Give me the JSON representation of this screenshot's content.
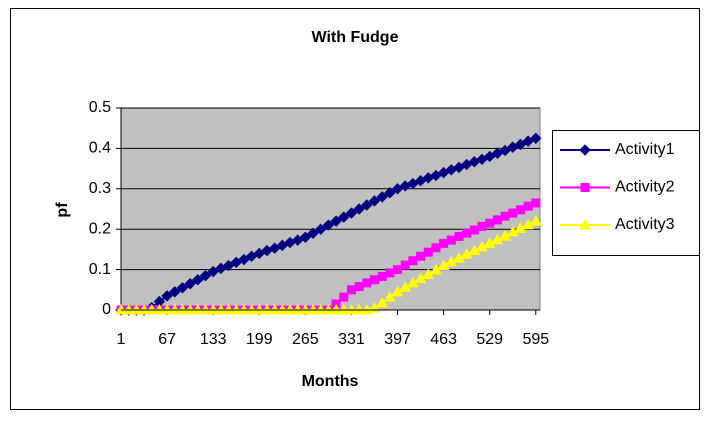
{
  "chart_data": {
    "type": "line",
    "title": "With Fudge",
    "xlabel": "Months",
    "ylabel": "pf",
    "x": [
      1,
      12,
      23,
      34,
      45,
      56,
      67,
      78,
      89,
      100,
      111,
      122,
      133,
      144,
      155,
      166,
      177,
      188,
      199,
      210,
      221,
      232,
      243,
      254,
      265,
      276,
      287,
      298,
      309,
      320,
      331,
      342,
      353,
      364,
      375,
      386,
      397,
      408,
      419,
      430,
      441,
      452,
      463,
      474,
      485,
      496,
      507,
      518,
      529,
      540,
      551,
      562,
      573,
      584,
      595
    ],
    "xlim": [
      1,
      601
    ],
    "xticks": [
      1,
      67,
      133,
      199,
      265,
      331,
      397,
      463,
      529,
      595
    ],
    "ylim": [
      0,
      0.5
    ],
    "yticks": [
      0,
      0.1,
      0.2,
      0.3,
      0.4,
      0.5
    ],
    "grid": true,
    "legend": "right",
    "series": [
      {
        "name": "Activity1",
        "color": "#000080",
        "marker": "diamond",
        "values": [
          0,
          0,
          0,
          0,
          0.006,
          0.021,
          0.035,
          0.045,
          0.055,
          0.065,
          0.075,
          0.085,
          0.095,
          0.103,
          0.11,
          0.118,
          0.125,
          0.133,
          0.14,
          0.147,
          0.153,
          0.16,
          0.167,
          0.173,
          0.18,
          0.19,
          0.2,
          0.21,
          0.22,
          0.23,
          0.24,
          0.25,
          0.26,
          0.27,
          0.28,
          0.29,
          0.3,
          0.307,
          0.313,
          0.32,
          0.327,
          0.333,
          0.34,
          0.347,
          0.353,
          0.36,
          0.367,
          0.373,
          0.38,
          0.388,
          0.395,
          0.403,
          0.41,
          0.418,
          0.425
        ]
      },
      {
        "name": "Activity2",
        "color": "#FF00FF",
        "marker": "square",
        "values": [
          0,
          0,
          0,
          0,
          0,
          0,
          0,
          0,
          0,
          0,
          0,
          0,
          0,
          0,
          0,
          0,
          0,
          0,
          0,
          0,
          0,
          0,
          0,
          0,
          0,
          0,
          0,
          0,
          0.015,
          0.032,
          0.05,
          0.058,
          0.067,
          0.075,
          0.083,
          0.092,
          0.1,
          0.111,
          0.122,
          0.133,
          0.143,
          0.154,
          0.165,
          0.173,
          0.182,
          0.19,
          0.198,
          0.207,
          0.215,
          0.223,
          0.232,
          0.24,
          0.248,
          0.257,
          0.265
        ]
      },
      {
        "name": "Activity3",
        "color": "#FFFF00",
        "marker": "triangle",
        "values": [
          0,
          0,
          0,
          0,
          0,
          0,
          0,
          0,
          0,
          0,
          0,
          0,
          0,
          0,
          0,
          0,
          0,
          0,
          0,
          0,
          0,
          0,
          0,
          0,
          0,
          0,
          0,
          0,
          0,
          0,
          0,
          0,
          0,
          0.005,
          0.018,
          0.032,
          0.045,
          0.056,
          0.067,
          0.078,
          0.088,
          0.099,
          0.11,
          0.119,
          0.128,
          0.138,
          0.147,
          0.156,
          0.165,
          0.174,
          0.183,
          0.193,
          0.202,
          0.211,
          0.22
        ]
      }
    ]
  }
}
